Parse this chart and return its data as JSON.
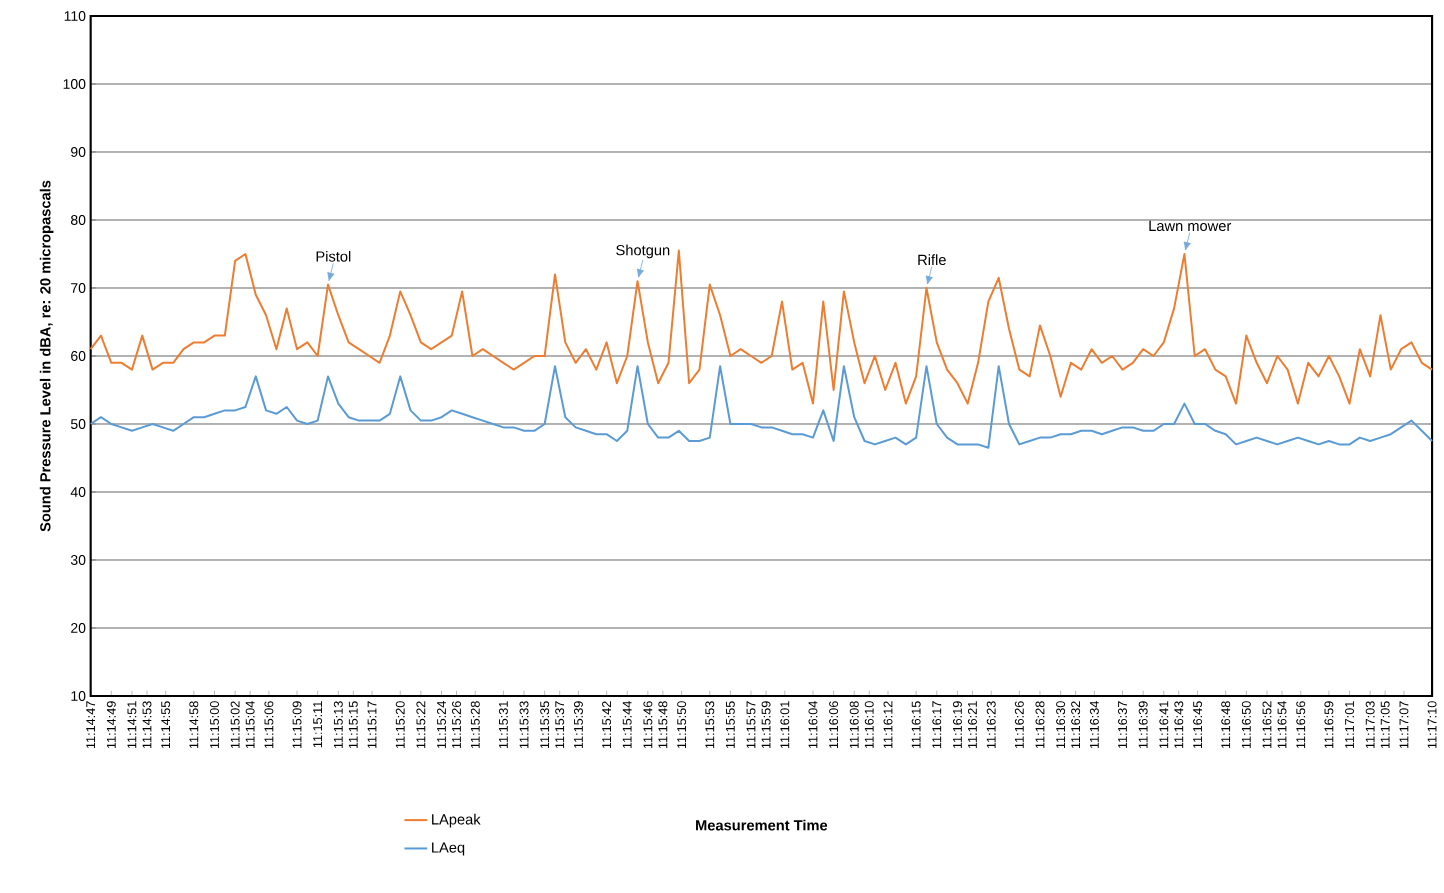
{
  "chart_data": {
    "type": "line",
    "ylabel": "Sound Pressure Level in dBA, re: 20 micropascals",
    "xlabel": "Measurement Time",
    "x": [
      11.246389,
      11.246694,
      11.247,
      11.247306,
      11.247611,
      11.247917,
      11.248222,
      11.248528,
      11.248833,
      11.249139,
      11.249444,
      11.24975,
      11.250056,
      11.250361,
      11.250667,
      11.250972,
      11.251278,
      11.251583,
      11.251889,
      11.252194,
      11.2525,
      11.252806,
      11.253111,
      11.253417,
      11.253722,
      11.254028,
      11.254333,
      11.254639,
      11.254944,
      11.25525,
      11.255556,
      11.255861,
      11.256167,
      11.256472,
      11.256778,
      11.257083,
      11.257389,
      11.257694,
      11.258,
      11.258306,
      11.258611,
      11.258917,
      11.259222,
      11.259528,
      11.259833,
      11.260139,
      11.260444,
      11.26075,
      11.261056,
      11.261361,
      11.261667,
      11.261972,
      11.262278,
      11.262583,
      11.262889,
      11.263194,
      11.2635,
      11.263806,
      11.264111,
      11.264417,
      11.264722,
      11.265028,
      11.265333,
      11.265639,
      11.265944,
      11.26625,
      11.266556,
      11.266861,
      11.267167,
      11.267472,
      11.267778,
      11.268083,
      11.268389,
      11.268694,
      11.269,
      11.269306,
      11.269611,
      11.269917,
      11.270222,
      11.270528,
      11.270833,
      11.271139,
      11.271444,
      11.27175,
      11.272056,
      11.272361,
      11.272667,
      11.272972,
      11.273278,
      11.273583,
      11.273889,
      11.274194,
      11.2745,
      11.274806,
      11.275111,
      11.275417,
      11.275722,
      11.276028,
      11.276333,
      11.276639,
      11.276944,
      11.27725,
      11.277556,
      11.277861,
      11.278167,
      11.278472,
      11.278778,
      11.279083,
      11.279389,
      11.279694,
      11.28,
      11.280306,
      11.280611,
      11.280917,
      11.281222,
      11.281528,
      11.281833,
      11.282139,
      11.282444,
      11.28275,
      11.283056,
      11.283361,
      11.283667,
      11.283972,
      11.284278,
      11.284583,
      11.284889,
      11.285194,
      11.2855,
      11.285806,
      11.286111
    ],
    "series": [
      {
        "name": "LApeak",
        "color": "#ed7d31",
        "values": [
          61,
          63,
          59,
          59,
          58,
          63,
          58,
          59,
          59,
          61,
          62,
          62,
          63,
          63,
          74,
          75,
          69,
          66,
          61,
          67,
          61,
          62,
          60,
          70.5,
          66,
          62,
          61,
          60,
          59,
          63,
          69.5,
          66,
          62,
          61,
          62,
          63,
          69.5,
          60,
          61,
          60,
          59,
          58,
          59,
          60,
          60,
          72,
          62,
          59,
          61,
          58,
          62,
          56,
          60,
          71,
          62,
          56,
          59,
          75.5,
          56,
          58,
          70.5,
          66,
          60,
          61,
          60,
          59,
          60,
          68,
          58,
          59,
          53,
          68,
          55,
          69.5,
          62,
          56,
          60,
          55,
          59,
          53,
          57,
          70,
          62,
          58,
          56,
          53,
          59,
          68,
          71.5,
          64,
          58,
          57,
          64.5,
          60,
          54,
          59,
          58,
          61,
          59,
          60,
          58,
          59,
          61,
          60,
          62,
          67,
          75,
          60,
          61,
          58,
          57,
          53,
          63,
          59,
          56,
          60,
          58,
          53,
          59,
          57,
          60,
          57,
          53,
          61,
          57,
          66,
          58,
          61,
          62,
          59,
          58
        ]
      },
      {
        "name": "LAeq",
        "color": "#5b9bd5",
        "values": [
          50,
          51,
          50,
          49.5,
          49,
          49.5,
          50,
          49.5,
          49,
          50,
          51,
          51,
          51.5,
          52,
          52,
          52.5,
          57,
          52,
          51.5,
          52.5,
          50.5,
          50,
          50.5,
          57,
          53,
          51,
          50.5,
          50.5,
          50.5,
          51.5,
          57,
          52,
          50.5,
          50.5,
          51,
          52,
          51.5,
          51,
          50.5,
          50,
          49.5,
          49.5,
          49,
          49,
          50,
          58.5,
          51,
          49.5,
          49,
          48.5,
          48.5,
          47.5,
          49,
          58.5,
          50,
          48,
          48,
          49,
          47.5,
          47.5,
          48,
          58.5,
          50,
          50,
          50,
          49.5,
          49.5,
          49,
          48.5,
          48.5,
          48,
          52,
          47.5,
          58.5,
          51,
          47.5,
          47,
          47.5,
          48,
          47,
          48,
          58.5,
          50,
          48,
          47,
          47,
          47,
          46.5,
          58.5,
          50,
          47,
          47.5,
          48,
          48,
          48.5,
          48.5,
          49,
          49,
          48.5,
          49,
          49.5,
          49.5,
          49,
          49,
          50,
          50,
          53,
          50,
          50,
          49,
          48.5,
          47,
          47.5,
          48,
          47.5,
          47,
          47.5,
          48,
          47.5,
          47,
          47.5,
          47,
          47,
          48,
          47.5,
          48,
          48.5,
          49.5,
          50.5,
          49,
          47.5
        ]
      }
    ],
    "xlim": [
      11.246389,
      11.286111
    ],
    "ylim": [
      10,
      110
    ],
    "yticks": [
      10,
      20,
      30,
      40,
      50,
      60,
      70,
      80,
      90,
      100,
      110
    ],
    "xticks": [
      {
        "value": 11.246389,
        "label": "11:14:47"
      },
      {
        "value": 11.247,
        "label": "11:14:49"
      },
      {
        "value": 11.247611,
        "label": "11:14:51"
      },
      {
        "value": 11.248056,
        "label": "11:14:53"
      },
      {
        "value": 11.248611,
        "label": "11:14:55"
      },
      {
        "value": 11.249444,
        "label": "11:14:58"
      },
      {
        "value": 11.250056,
        "label": "11:15:00"
      },
      {
        "value": 11.250667,
        "label": "11:15:02"
      },
      {
        "value": 11.251111,
        "label": "11:15:04"
      },
      {
        "value": 11.251667,
        "label": "11:15:06"
      },
      {
        "value": 11.2525,
        "label": "11:15:09"
      },
      {
        "value": 11.253111,
        "label": "11:15:11"
      },
      {
        "value": 11.253722,
        "label": "11:15:13"
      },
      {
        "value": 11.254167,
        "label": "11:15:15"
      },
      {
        "value": 11.254722,
        "label": "11:15:17"
      },
      {
        "value": 11.255556,
        "label": "11:15:20"
      },
      {
        "value": 11.256167,
        "label": "11:15:22"
      },
      {
        "value": 11.256778,
        "label": "11:15:24"
      },
      {
        "value": 11.257222,
        "label": "11:15:26"
      },
      {
        "value": 11.257778,
        "label": "11:15:28"
      },
      {
        "value": 11.258611,
        "label": "11:15:31"
      },
      {
        "value": 11.259222,
        "label": "11:15:33"
      },
      {
        "value": 11.259833,
        "label": "11:15:35"
      },
      {
        "value": 11.260278,
        "label": "11:15:37"
      },
      {
        "value": 11.260833,
        "label": "11:15:39"
      },
      {
        "value": 11.261667,
        "label": "11:15:42"
      },
      {
        "value": 11.262278,
        "label": "11:15:44"
      },
      {
        "value": 11.262889,
        "label": "11:15:46"
      },
      {
        "value": 11.263333,
        "label": "11:15:48"
      },
      {
        "value": 11.263889,
        "label": "11:15:50"
      },
      {
        "value": 11.264722,
        "label": "11:15:53"
      },
      {
        "value": 11.265333,
        "label": "11:15:55"
      },
      {
        "value": 11.265944,
        "label": "11:15:57"
      },
      {
        "value": 11.266389,
        "label": "11:15:59"
      },
      {
        "value": 11.266944,
        "label": "11:16:01"
      },
      {
        "value": 11.267778,
        "label": "11:16:04"
      },
      {
        "value": 11.268389,
        "label": "11:16:06"
      },
      {
        "value": 11.269,
        "label": "11:16:08"
      },
      {
        "value": 11.269444,
        "label": "11:16:10"
      },
      {
        "value": 11.27,
        "label": "11:16:12"
      },
      {
        "value": 11.270833,
        "label": "11:16:15"
      },
      {
        "value": 11.271444,
        "label": "11:16:17"
      },
      {
        "value": 11.272056,
        "label": "11:16:19"
      },
      {
        "value": 11.2725,
        "label": "11:16:21"
      },
      {
        "value": 11.273056,
        "label": "11:16:23"
      },
      {
        "value": 11.273889,
        "label": "11:16:26"
      },
      {
        "value": 11.2745,
        "label": "11:16:28"
      },
      {
        "value": 11.275111,
        "label": "11:16:30"
      },
      {
        "value": 11.275556,
        "label": "11:16:32"
      },
      {
        "value": 11.276111,
        "label": "11:16:34"
      },
      {
        "value": 11.276944,
        "label": "11:16:37"
      },
      {
        "value": 11.277556,
        "label": "11:16:39"
      },
      {
        "value": 11.278167,
        "label": "11:16:41"
      },
      {
        "value": 11.278611,
        "label": "11:16:43"
      },
      {
        "value": 11.279167,
        "label": "11:16:45"
      },
      {
        "value": 11.28,
        "label": "11:16:48"
      },
      {
        "value": 11.280611,
        "label": "11:16:50"
      },
      {
        "value": 11.281222,
        "label": "11:16:52"
      },
      {
        "value": 11.281667,
        "label": "11:16:54"
      },
      {
        "value": 11.282222,
        "label": "11:16:56"
      },
      {
        "value": 11.283056,
        "label": "11:16:59"
      },
      {
        "value": 11.283667,
        "label": "11:17:01"
      },
      {
        "value": 11.284278,
        "label": "11:17:03"
      },
      {
        "value": 11.284722,
        "label": "11:17:05"
      },
      {
        "value": 11.285278,
        "label": "11:17:07"
      },
      {
        "value": 11.286111,
        "label": "11:17:10"
      }
    ],
    "grid": "y",
    "legend": "bottom",
    "annotations": [
      {
        "text": "Pistol",
        "x": 11.253417,
        "y": 70.5
      },
      {
        "text": "Shotgun",
        "x": 11.262583,
        "y": 71
      },
      {
        "text": "Rifle",
        "x": 11.271139,
        "y": 70
      },
      {
        "text": "Lawn mower",
        "x": 11.278778,
        "y": 75
      }
    ]
  }
}
